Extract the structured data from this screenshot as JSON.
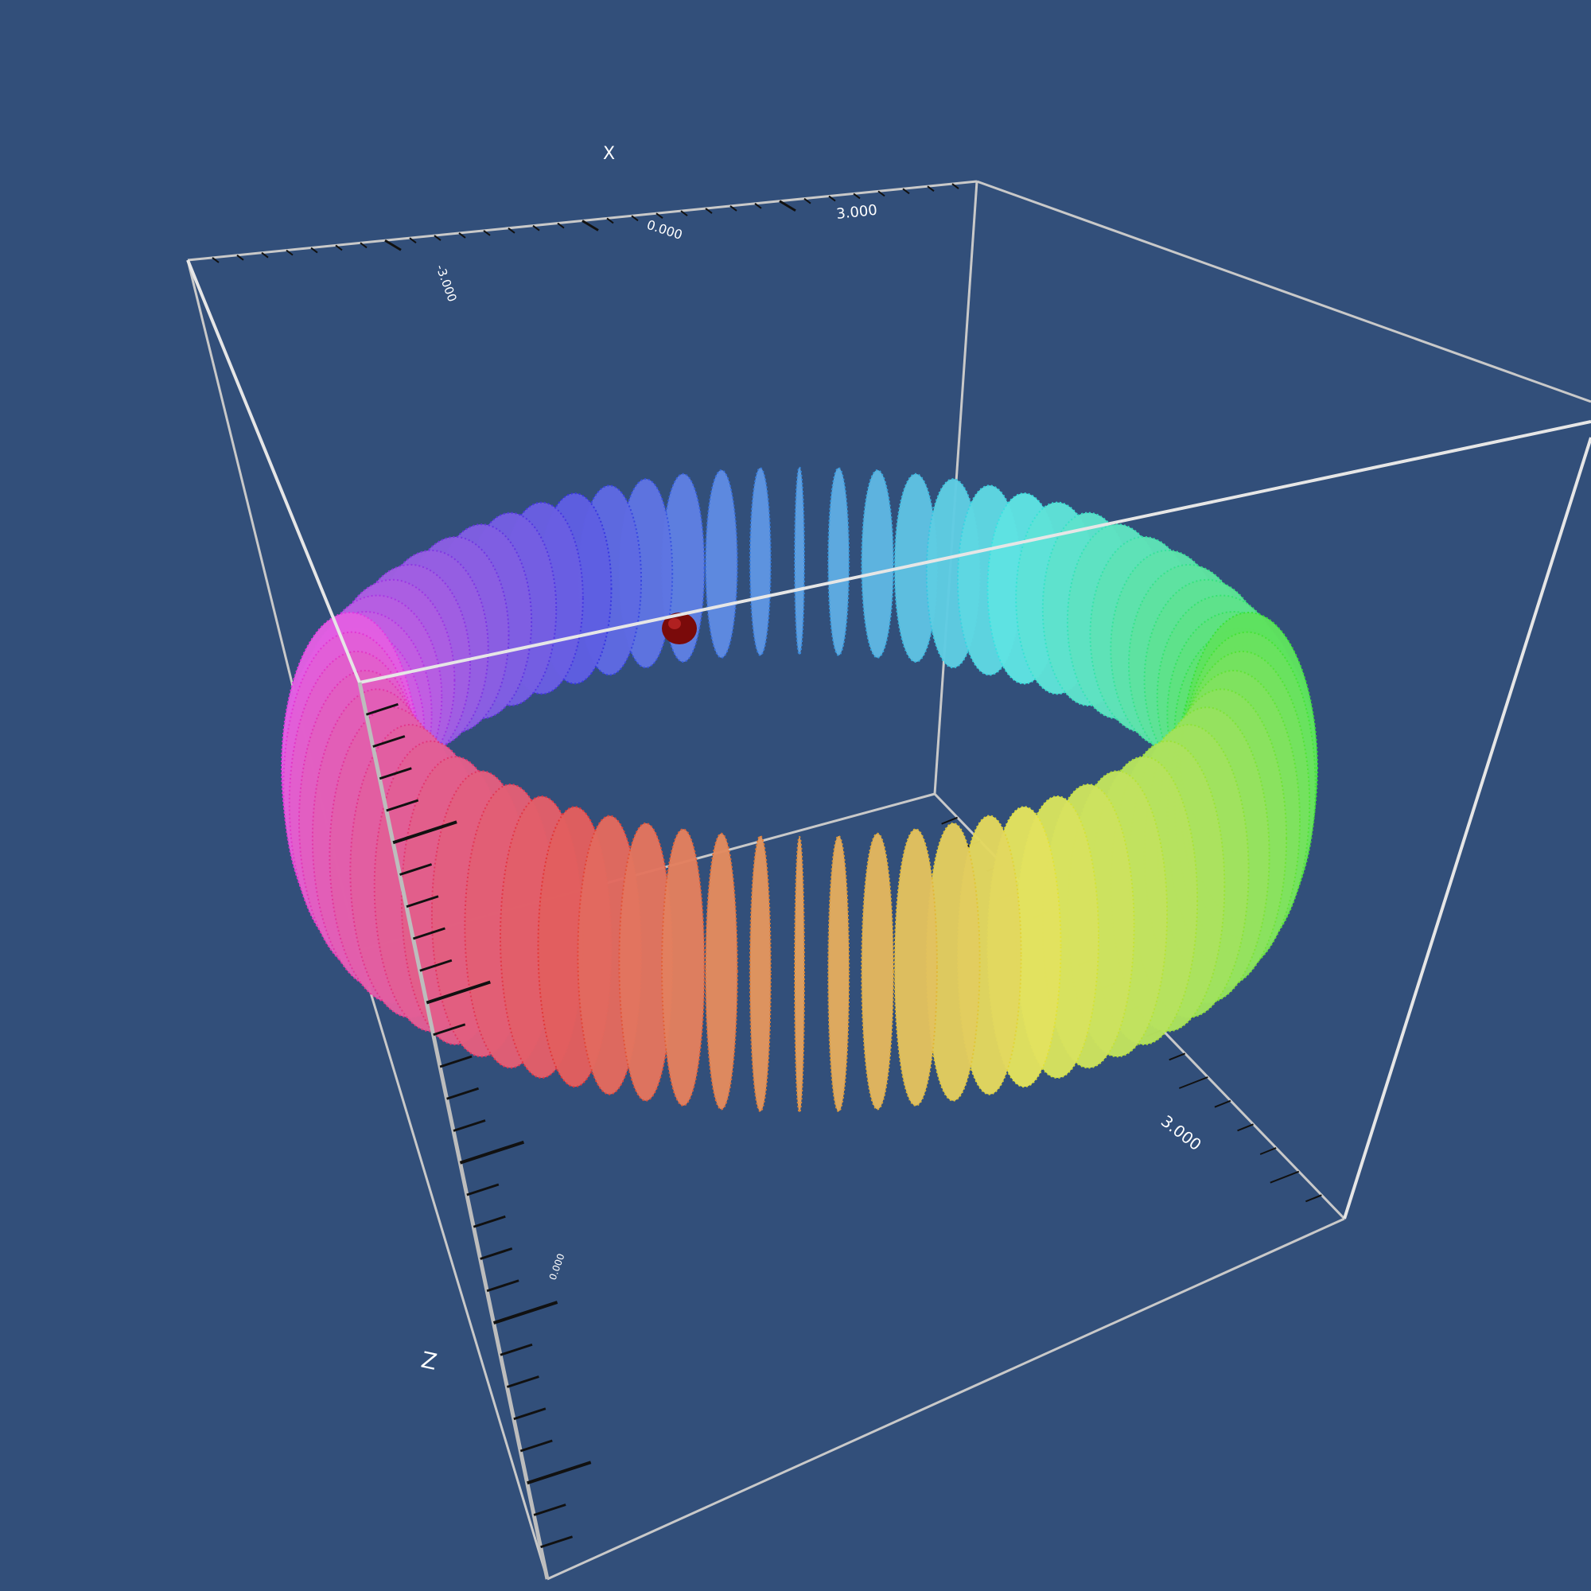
{
  "background": "#324f7a",
  "box_color": "#d0d0d0",
  "marker_color": "#7a0a0a",
  "chart_data": {
    "type": "scatter3d",
    "shape": "torus of point-sampled disks",
    "colormap": "rainbow around the ring",
    "axes": {
      "x": {
        "label": "X",
        "ticks": [
          "-3.000",
          "0.000",
          "3.000"
        ]
      },
      "y": {
        "label": "",
        "ticks": [
          "3.000",
          "0.000"
        ]
      },
      "z": {
        "label": "Z",
        "ticks": []
      }
    },
    "ring_disks": 72,
    "marker": {
      "type": "sphere",
      "description": "red highlighted point"
    }
  }
}
